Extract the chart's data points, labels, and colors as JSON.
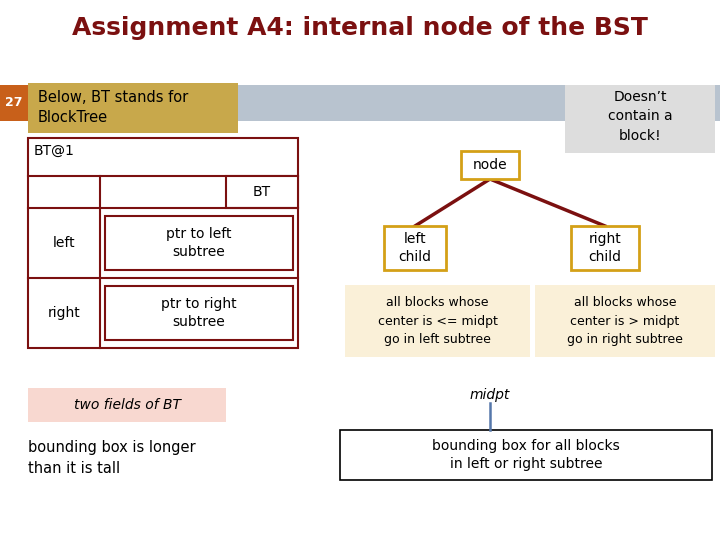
{
  "title": "Assignment A4: internal node of the BST",
  "title_color": "#7B1010",
  "title_fontsize": 18,
  "slide_number": "27",
  "slide_num_bg": "#C8601A",
  "header_bar_color": "#8A9BB0",
  "below_bt_text": "Below, BT stands for\nBlockTree",
  "below_bt_box_color": "#C8A84B",
  "bt_at1_label": "BT@1",
  "bt_label": "BT",
  "left_label": "left",
  "left_desc": "ptr to left\nsubtree",
  "right_label": "right",
  "right_desc": "ptr to right\nsubtree",
  "two_fields_text": "two fields of BT",
  "two_fields_bg": "#F8D8D0",
  "bounding_box_text": "bounding box is longer\nthan it is tall",
  "doesnt_contain_text": "Doesn’t\ncontain a\nblock!",
  "doesnt_contain_bg": "#DDDDDD",
  "node_label": "node",
  "node_box_color": "#D4A017",
  "left_child_label": "left\nchild",
  "right_child_label": "right\nchild",
  "child_box_color": "#D4A017",
  "tree_line_color": "#7B1010",
  "left_desc_box": "all blocks whose\ncenter is <= midpt\ngo in left subtree",
  "right_desc_box": "all blocks whose\ncenter is > midpt\ngo in right subtree",
  "desc_box_bg": "#FAF0D8",
  "midpt_label": "midpt",
  "midpt_line_color": "#5577AA",
  "bounding_box2_text": "bounding box for all blocks\nin left or right subtree",
  "bg_color": "#FFFFFF",
  "struct_border_color": "#7B1010"
}
